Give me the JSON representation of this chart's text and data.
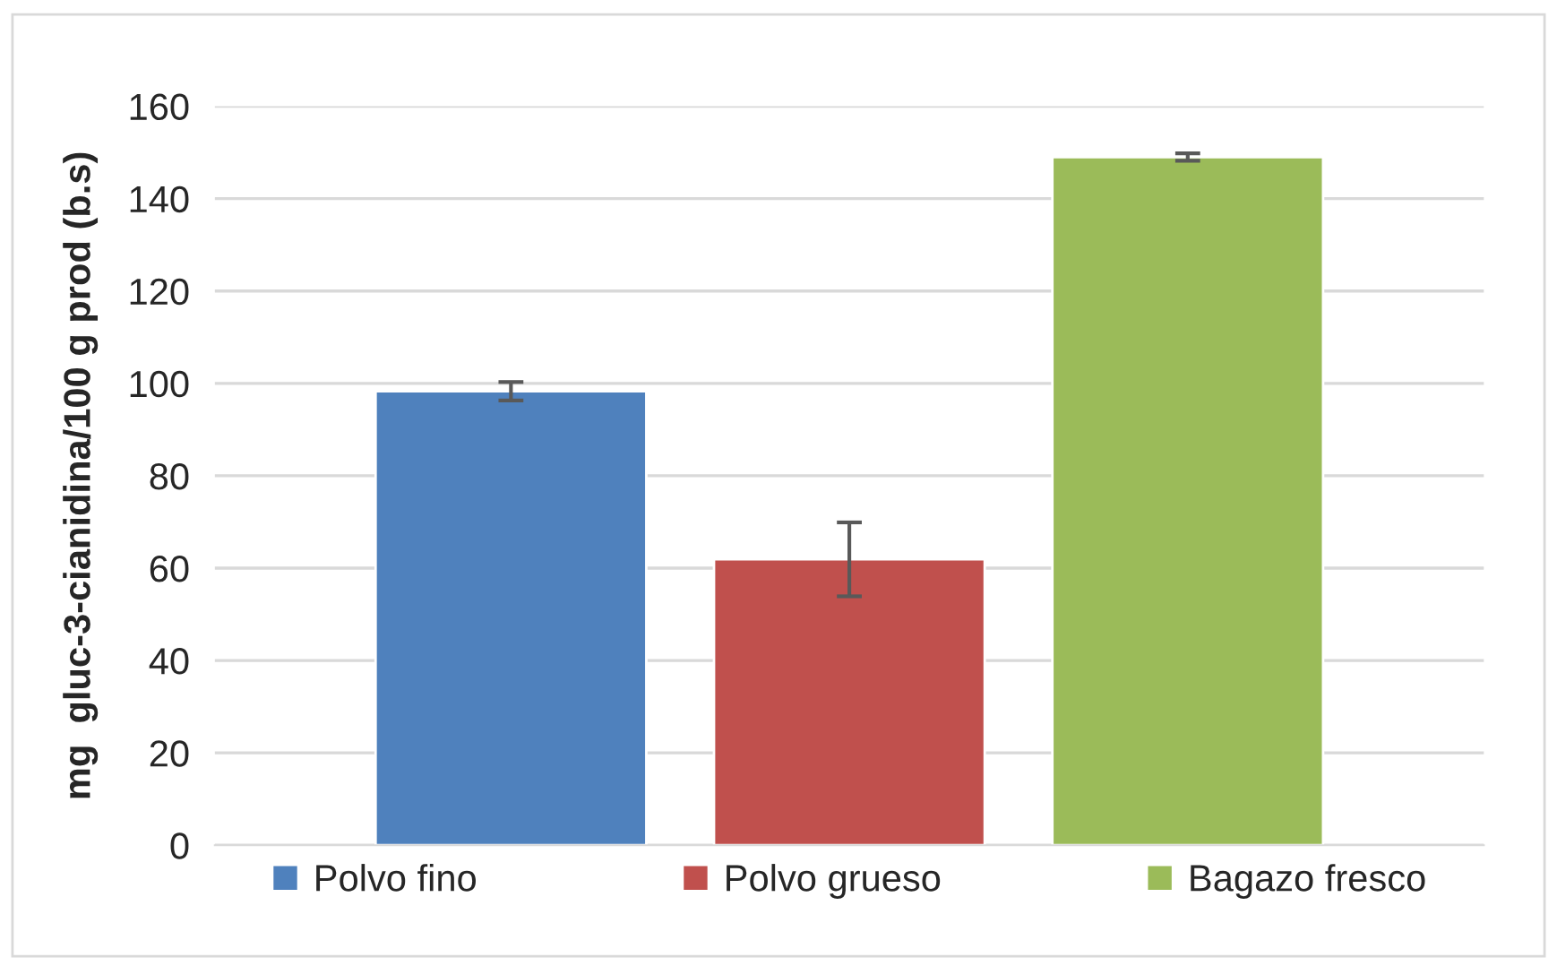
{
  "chart_data": {
    "type": "bar",
    "ylabel": "mg  gluc-3-cianidina/100 g prod (b.s)",
    "categories": [
      null
    ],
    "series": [
      {
        "name": "Polvo fino",
        "color": "#4f81bd",
        "values": [
          98.3
        ],
        "errors": [
          2
        ]
      },
      {
        "name": "Polvo grueso",
        "color": "#c0504d",
        "values": [
          61.9
        ],
        "errors": [
          8
        ]
      },
      {
        "name": "Bagazo fresco",
        "color": "#9bbb59",
        "values": [
          149.0
        ],
        "errors": [
          0.8
        ]
      }
    ],
    "ylim": [
      0,
      160
    ],
    "yticks": [
      0,
      20,
      40,
      60,
      80,
      100,
      120,
      140,
      160
    ],
    "grid": "y",
    "legend": "bottom"
  }
}
